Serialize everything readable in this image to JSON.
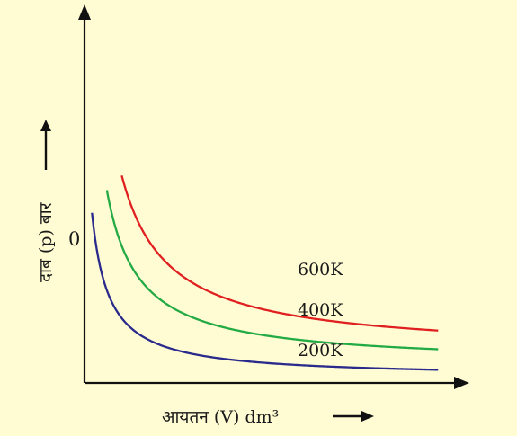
{
  "chart_data": {
    "type": "line",
    "title": "",
    "xlabel": "आयतन (V) dm³",
    "ylabel": "दाब (p) बार",
    "origin_label": "0",
    "grid": false,
    "legend": "inline labels at curve ends",
    "background_color": "#FFFBD2",
    "axis_color": "#111111",
    "xlim": [
      0,
      10
    ],
    "ylim": [
      0,
      10
    ],
    "ticks": false,
    "series": [
      {
        "name": "200K",
        "color": "#2A2A8C",
        "k": 2.0,
        "x_start": 0.2,
        "x_end": 9.5,
        "offset": 0.15,
        "label_x": 6.0,
        "label_y": 0.9
      },
      {
        "name": "400K",
        "color": "#22AA44",
        "k": 4.0,
        "x_start": 0.6,
        "x_end": 9.5,
        "offset": 0.5,
        "label_x": 6.0,
        "label_y": 2.25
      },
      {
        "name": "600K",
        "color": "#E02020",
        "k": 6.0,
        "x_start": 1.0,
        "x_end": 9.5,
        "offset": 0.8,
        "label_x": 6.0,
        "label_y": 3.3
      }
    ]
  }
}
